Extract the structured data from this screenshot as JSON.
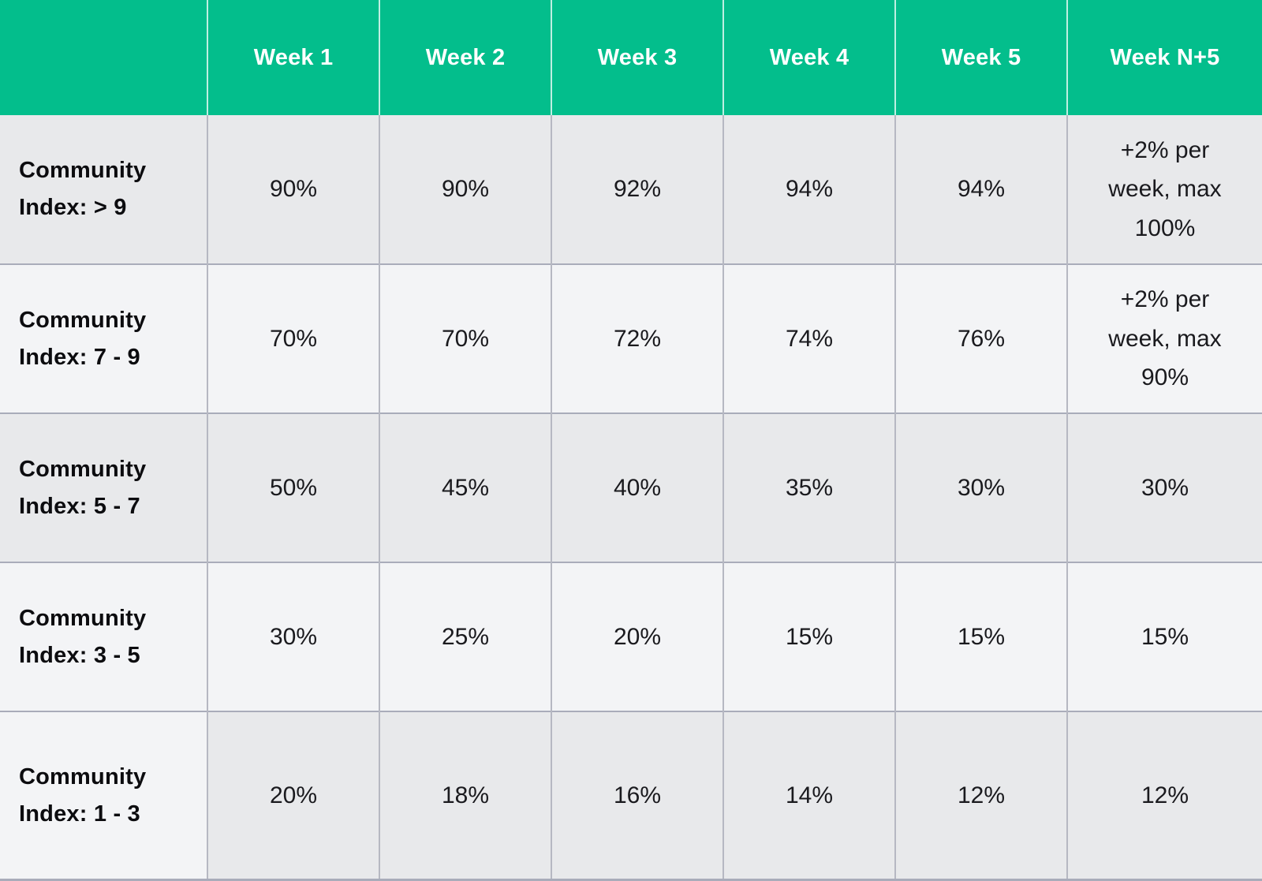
{
  "colors": {
    "header_bg": "#03be8c",
    "header_text": "#ffffff",
    "row_dark": "#e8e9eb",
    "row_light": "#f3f4f6",
    "border_horizontal": "#a9acba",
    "border_vertical": "#b6b8c2",
    "label_text": "#0c0c0f",
    "value_text": "#1a1a1e"
  },
  "chart_data": {
    "type": "table",
    "title": "",
    "corner_label": "",
    "columns": [
      "Week 1",
      "Week 2",
      "Week 3",
      "Week 4",
      "Week 5",
      "Week N+5"
    ],
    "rows": [
      {
        "label": "Community Index: > 9",
        "values": [
          "90%",
          "90%",
          "92%",
          "94%",
          "94%",
          "+2% per week, max 100%"
        ]
      },
      {
        "label": "Community Index: 7 - 9",
        "values": [
          "70%",
          "70%",
          "72%",
          "74%",
          "76%",
          "+2% per week, max 90%"
        ]
      },
      {
        "label": "Community Index: 5 - 7",
        "values": [
          "50%",
          "45%",
          "40%",
          "35%",
          "30%",
          "30%"
        ]
      },
      {
        "label": "Community Index: 3 - 5",
        "values": [
          "30%",
          "25%",
          "20%",
          "15%",
          "15%",
          "15%"
        ]
      },
      {
        "label": "Community Index: 1 - 3",
        "values": [
          "20%",
          "18%",
          "16%",
          "14%",
          "12%",
          "12%"
        ]
      }
    ]
  }
}
